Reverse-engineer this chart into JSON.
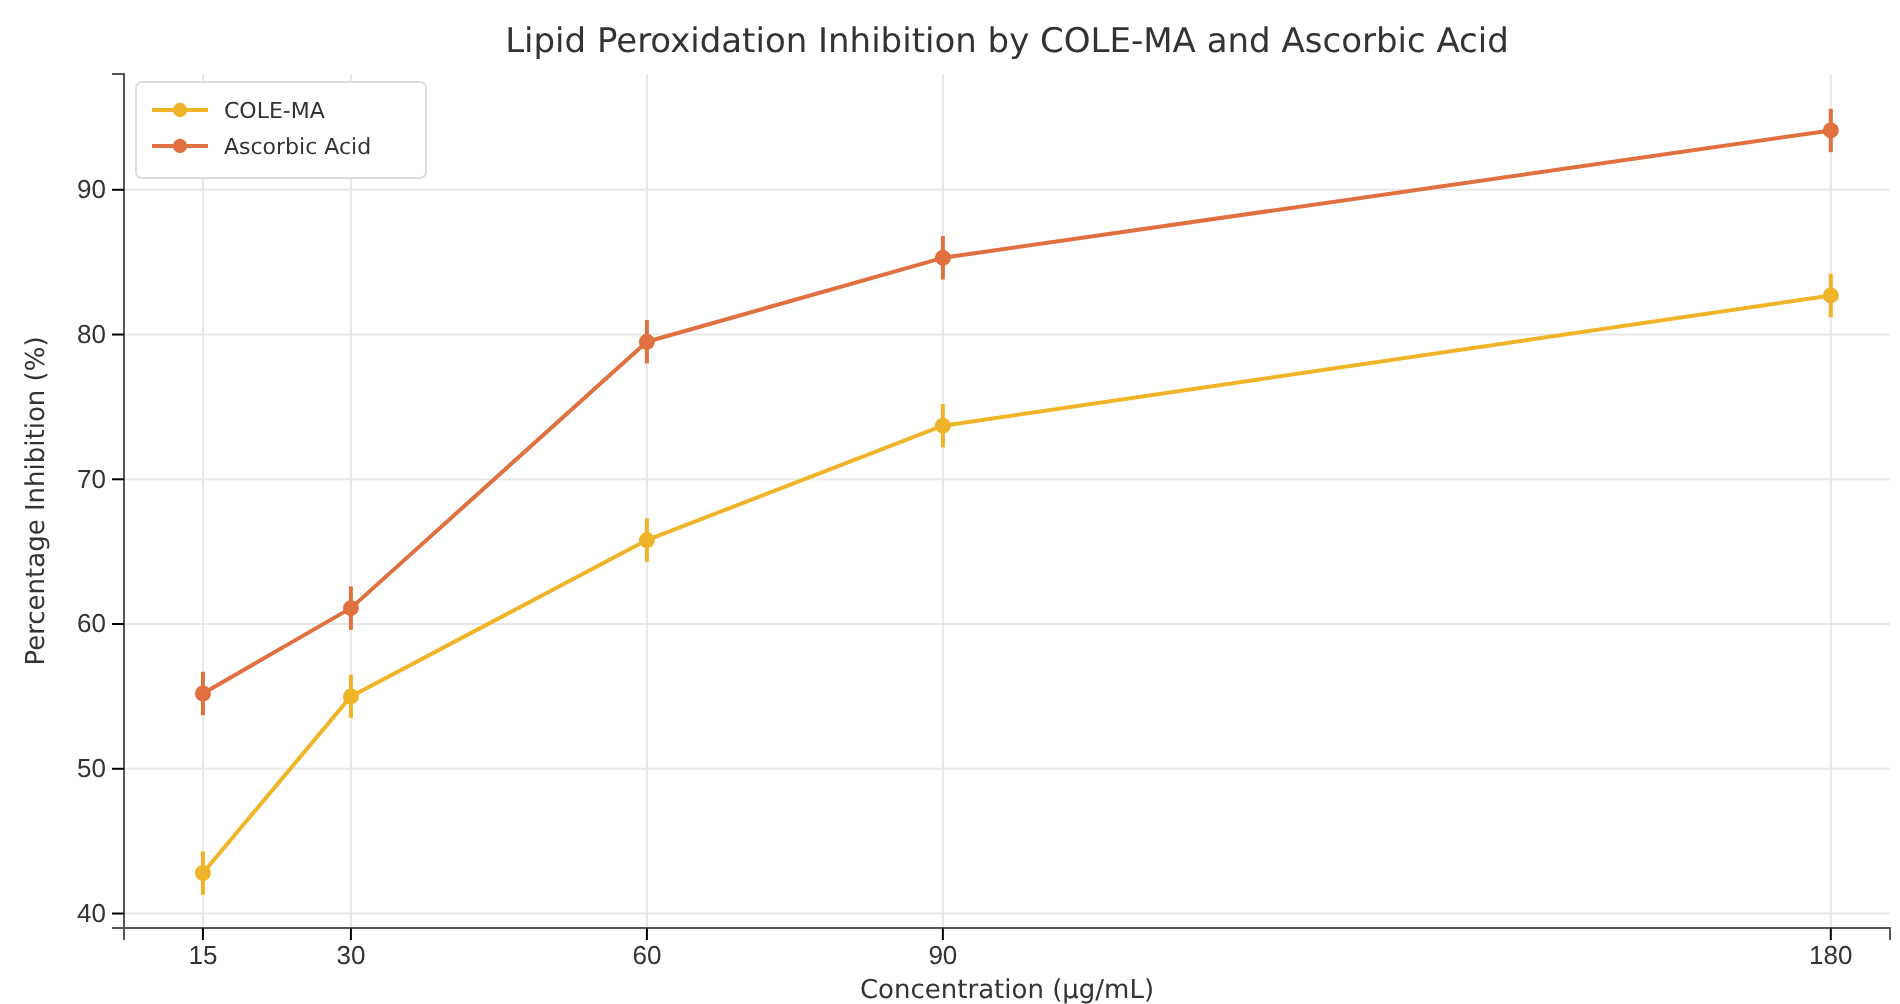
{
  "chart_data": {
    "type": "line",
    "title": "Lipid Peroxidation Inhibition by COLE-MA and Ascorbic Acid",
    "xlabel": "Concentration (µg/mL)",
    "ylabel": "Percentage Inhibition (%)",
    "x": [
      15,
      30,
      60,
      90,
      180
    ],
    "series": [
      {
        "name": "COLE-MA",
        "color": "#f0b429",
        "values": [
          42.8,
          55.0,
          65.8,
          73.7,
          82.7
        ],
        "errors": [
          1.5,
          1.5,
          1.5,
          1.5,
          1.5
        ]
      },
      {
        "name": "Ascorbic Acid",
        "color": "#e0703f",
        "values": [
          55.2,
          61.1,
          79.5,
          85.3,
          94.1
        ],
        "errors": [
          1.5,
          1.5,
          1.5,
          1.5,
          1.5
        ]
      }
    ],
    "xlim": [
      7,
      186
    ],
    "xticks": [
      15,
      30,
      60,
      90,
      180
    ],
    "ylim": [
      39,
      98
    ],
    "yticks": [
      40,
      50,
      60,
      70,
      80,
      90
    ],
    "grid": true,
    "legend": "top left",
    "marker": "circle",
    "line_style": "solid"
  }
}
